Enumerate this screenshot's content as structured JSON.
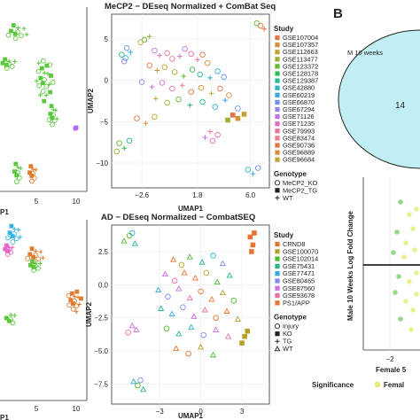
{
  "colors": {
    "study_mecp2": [
      "#e5734a",
      "#d5903a",
      "#c3a430",
      "#9bb22c",
      "#5fba2e",
      "#2dbb55",
      "#27b894",
      "#27b3c0",
      "#36a7e0",
      "#6d93ef",
      "#9c80ef",
      "#c472e6",
      "#e06cc9",
      "#ee6fa3",
      "#f2788d"
    ],
    "study_ad": [
      "#e8752f",
      "#b6a22a",
      "#4cbb2e",
      "#27b590",
      "#2eaed5",
      "#7c8cf0",
      "#cc6de0",
      "#ee6ea8"
    ],
    "ellipse_fill": "#bfeff5",
    "sig_female": "#e6ec7a",
    "sig_male": "#7fd36e",
    "left_green": "#59c93b",
    "left_orange": "#e07b2c",
    "left_purple": "#b06af0",
    "left_blue": "#35b4e6",
    "left_pink": "#e766c8"
  },
  "panel_b": {
    "letter": "B",
    "venn_label": "M 10 weeks",
    "venn_value": "14",
    "ylabel": "Male 10 Weeks Log Fold Change",
    "xlabel": "Female 5",
    "xtick": "−2",
    "significance_title": "Significance",
    "significance_item": "Femal"
  },
  "left_top": {
    "xlabel": "P1",
    "xticks": [
      "5",
      "10"
    ]
  },
  "left_bottom": {
    "xlabel": "P1",
    "xticks": [
      "5",
      "10"
    ]
  },
  "chart_data": [
    {
      "type": "scatter",
      "title": "MeCP2 − DEseq Normalized + ComBat Seq",
      "xlabel": "UMAP1",
      "ylabel": "UMAP2",
      "xticks": [
        "−2.6",
        "1.8",
        "6.0"
      ],
      "yticks": [
        "5",
        "0",
        "−5",
        "−10"
      ],
      "xlim": [
        -5,
        7.5
      ],
      "ylim": [
        -13,
        8
      ],
      "legend_study_title": "Study",
      "studies": [
        "GSE107004",
        "GSE107357",
        "GSE112663",
        "GSE113477",
        "GSE123372",
        "GSE128178",
        "GSE129387",
        "GSE42880",
        "GSE60219",
        "GSE66870",
        "GSE67294",
        "GSE71126",
        "GSE71235",
        "GSE79993",
        "GSE83474",
        "GSE90736",
        "GSE96889",
        "GSE96684"
      ],
      "legend_genotype_title": "Genotype",
      "genotypes": [
        "MeCP2_KO",
        "MeCP2_TG",
        "WT"
      ],
      "points": [
        [
          6.8,
          6.6,
          0,
          0
        ],
        [
          7.1,
          6.2,
          0,
          2
        ],
        [
          6.5,
          6.9,
          4,
          0
        ],
        [
          -4.2,
          3.1,
          6,
          0
        ],
        [
          -3.9,
          2.7,
          7,
          0
        ],
        [
          -3.5,
          3.4,
          8,
          2
        ],
        [
          -3.8,
          3.9,
          9,
          0
        ],
        [
          -4.0,
          2.3,
          10,
          0
        ],
        [
          -2.4,
          4.9,
          4,
          0
        ],
        [
          -2.0,
          5.3,
          3,
          2
        ],
        [
          -2.7,
          4.6,
          2,
          0
        ],
        [
          -1.6,
          3.6,
          11,
          0
        ],
        [
          -1.2,
          3.0,
          12,
          2
        ],
        [
          -0.6,
          3.3,
          13,
          0
        ],
        [
          -0.2,
          2.6,
          14,
          0
        ],
        [
          0.4,
          2.9,
          12,
          2
        ],
        [
          0.8,
          3.8,
          11,
          0
        ],
        [
          1.3,
          3.2,
          13,
          0
        ],
        [
          1.8,
          2.5,
          14,
          2
        ],
        [
          2.2,
          3.1,
          15,
          0
        ],
        [
          2.6,
          2.1,
          16,
          0
        ],
        [
          -2.0,
          1.8,
          0,
          0
        ],
        [
          -1.4,
          1.2,
          1,
          2
        ],
        [
          -0.8,
          1.6,
          2,
          0
        ],
        [
          0.0,
          1.0,
          3,
          0
        ],
        [
          0.7,
          0.5,
          4,
          2
        ],
        [
          1.4,
          1.3,
          5,
          0
        ],
        [
          2.0,
          0.7,
          6,
          0
        ],
        [
          2.8,
          0.3,
          7,
          2
        ],
        [
          3.4,
          1.1,
          8,
          0
        ],
        [
          3.9,
          0.4,
          9,
          0
        ],
        [
          -2.6,
          -0.2,
          10,
          0
        ],
        [
          -1.8,
          -0.8,
          11,
          2
        ],
        [
          -1.0,
          -0.3,
          12,
          0
        ],
        [
          -0.2,
          -1.0,
          13,
          0
        ],
        [
          0.6,
          -0.6,
          14,
          2
        ],
        [
          1.3,
          -1.4,
          15,
          0
        ],
        [
          2.1,
          -0.9,
          16,
          0
        ],
        [
          2.9,
          -1.6,
          17,
          2
        ],
        [
          3.6,
          -1.0,
          0,
          0
        ],
        [
          4.3,
          -1.8,
          1,
          0
        ],
        [
          -1.5,
          -2.2,
          2,
          2
        ],
        [
          -0.6,
          -2.7,
          3,
          0
        ],
        [
          0.3,
          -2.3,
          4,
          0
        ],
        [
          1.2,
          -3.0,
          5,
          2
        ],
        [
          2.2,
          -2.6,
          6,
          0
        ],
        [
          3.2,
          -3.2,
          7,
          0
        ],
        [
          4.0,
          -2.4,
          8,
          2
        ],
        [
          5.0,
          -3.4,
          9,
          0
        ],
        [
          4.6,
          -4.2,
          0,
          1
        ],
        [
          5.0,
          -4.6,
          1,
          1
        ],
        [
          5.5,
          -4.1,
          2,
          1
        ],
        [
          4.2,
          -4.8,
          3,
          1
        ],
        [
          2.4,
          -6.9,
          11,
          2
        ],
        [
          3.0,
          -7.3,
          12,
          0
        ],
        [
          3.4,
          -6.6,
          13,
          0
        ],
        [
          2.8,
          -6.2,
          14,
          2
        ],
        [
          -4.4,
          -7.6,
          4,
          0
        ],
        [
          -4.0,
          -8.2,
          5,
          2
        ],
        [
          -3.6,
          -7.3,
          6,
          0
        ],
        [
          -4.6,
          -8.6,
          3,
          0
        ],
        [
          5.8,
          -10.8,
          7,
          0
        ],
        [
          6.2,
          -11.3,
          8,
          2
        ],
        [
          6.6,
          -10.6,
          9,
          0
        ],
        [
          -3.0,
          -4.6,
          15,
          0
        ],
        [
          -2.3,
          -5.2,
          16,
          2
        ],
        [
          -1.6,
          -4.4,
          17,
          0
        ]
      ]
    },
    {
      "type": "scatter",
      "title": "AD − DEseq Normalized − CombatSEQ",
      "xlabel": "UMAP1",
      "ylabel": "UMAP2",
      "xticks": [
        "−3",
        "0",
        "3"
      ],
      "yticks": [
        "2.5",
        "0.0",
        "−2.5",
        "−5.0",
        "−7.5"
      ],
      "xlim": [
        -6.5,
        5
      ],
      "ylim": [
        -9,
        4.5
      ],
      "legend_study_title": "Study",
      "studies": [
        "CRND8",
        "GSE100070",
        "GSE102014",
        "GSE75431",
        "GSE77471",
        "GSE80465",
        "GSE87560",
        "GSE93678",
        "PS1/APP"
      ],
      "legend_genotype_title": "Genotype",
      "genotypes": [
        "Injury",
        "KO",
        "TG",
        "WT"
      ],
      "points": [
        [
          -5.6,
          3.3,
          2,
          3
        ],
        [
          -5.2,
          3.7,
          2,
          0
        ],
        [
          -4.8,
          3.1,
          3,
          3
        ],
        [
          -5.0,
          3.9,
          4,
          0
        ],
        [
          3.6,
          3.6,
          0,
          1
        ],
        [
          3.8,
          3.0,
          0,
          1
        ],
        [
          3.7,
          2.5,
          0,
          1
        ],
        [
          3.9,
          3.9,
          0,
          1
        ],
        [
          -2.0,
          1.9,
          0,
          3
        ],
        [
          -1.4,
          1.5,
          1,
          0
        ],
        [
          -0.8,
          2.1,
          2,
          3
        ],
        [
          0.1,
          1.7,
          3,
          3
        ],
        [
          0.9,
          2.2,
          4,
          0
        ],
        [
          1.6,
          1.6,
          5,
          3
        ],
        [
          -2.6,
          0.8,
          6,
          3
        ],
        [
          -1.9,
          0.3,
          7,
          0
        ],
        [
          -1.2,
          0.9,
          8,
          3
        ],
        [
          -0.4,
          0.5,
          0,
          3
        ],
        [
          0.4,
          0.9,
          1,
          0
        ],
        [
          1.2,
          0.2,
          2,
          3
        ],
        [
          2.1,
          0.7,
          3,
          3
        ],
        [
          -3.1,
          -0.4,
          4,
          3
        ],
        [
          -2.4,
          -0.9,
          5,
          0
        ],
        [
          -1.6,
          -0.3,
          6,
          3
        ],
        [
          -0.8,
          -1.0,
          7,
          3
        ],
        [
          0.0,
          -0.5,
          8,
          0
        ],
        [
          0.8,
          -1.1,
          0,
          3
        ],
        [
          1.6,
          -0.6,
          1,
          3
        ],
        [
          2.4,
          -1.2,
          2,
          0
        ],
        [
          -2.9,
          -1.8,
          3,
          3
        ],
        [
          -2.1,
          -2.2,
          4,
          3
        ],
        [
          -1.3,
          -1.7,
          5,
          0
        ],
        [
          -0.5,
          -2.4,
          6,
          3
        ],
        [
          0.3,
          -1.9,
          7,
          3
        ],
        [
          1.1,
          -2.5,
          8,
          0
        ],
        [
          1.9,
          -2.0,
          0,
          3
        ],
        [
          2.7,
          -2.6,
          1,
          3
        ],
        [
          -2.5,
          -3.3,
          2,
          0
        ],
        [
          -1.6,
          -3.7,
          3,
          3
        ],
        [
          -0.7,
          -3.2,
          4,
          3
        ],
        [
          0.2,
          -3.8,
          5,
          0
        ],
        [
          1.1,
          -3.4,
          6,
          3
        ],
        [
          2.0,
          -3.9,
          7,
          3
        ],
        [
          -1.8,
          -4.8,
          8,
          3
        ],
        [
          -0.9,
          -5.2,
          0,
          0
        ],
        [
          0.0,
          -4.7,
          1,
          3
        ],
        [
          0.9,
          -5.3,
          2,
          3
        ],
        [
          -5.0,
          -3.1,
          6,
          3
        ],
        [
          -5.3,
          -3.6,
          7,
          0
        ],
        [
          -4.7,
          -3.4,
          6,
          3
        ],
        [
          -4.6,
          -7.6,
          2,
          0
        ],
        [
          -4.2,
          -7.9,
          3,
          3
        ],
        [
          -4.9,
          -7.3,
          4,
          3
        ],
        [
          -4.4,
          -7.2,
          5,
          0
        ],
        [
          3.2,
          -3.9,
          1,
          1
        ],
        [
          3.0,
          -4.4,
          1,
          1
        ],
        [
          3.4,
          -3.5,
          1,
          1
        ]
      ]
    }
  ]
}
